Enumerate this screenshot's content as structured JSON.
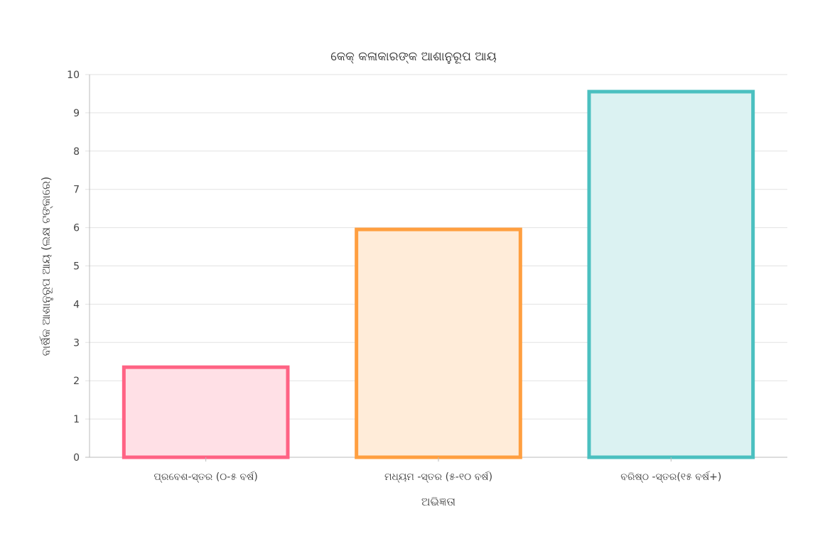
{
  "chart_data": {
    "type": "bar",
    "title": "କେକ୍ କଳାକାରଙ୍କ ଆଶାନୁରୂପ ଆୟ",
    "xlabel": "ଅଭିଜ୍ଞତା",
    "ylabel": "ବାର୍ଷିକ ଆଶାନୁରୂପ ଆୟ (ଲକ୍ଷ ଟଙ୍କାରେ)",
    "categories": [
      "ପ୍ରବେଶ-ସ୍ତର (୦-୫ ବର୍ଷ)",
      "ମଧ୍ୟମ -ସ୍ତର (୫-୧୦ ବର୍ଷ)",
      "ବରିଷ୍ଠ -ସ୍ତର(୧୫ ବର୍ଷ+)"
    ],
    "values": [
      2.4,
      6,
      9.6
    ],
    "ylim": [
      0,
      10
    ],
    "yticks": [
      0,
      1,
      2,
      3,
      4,
      5,
      6,
      7,
      8,
      9,
      10
    ],
    "grid": true,
    "colors": {
      "border": [
        "#ff6384",
        "#ff9f40",
        "#4bc0c0"
      ],
      "fill": [
        "#ffe0e6",
        "#ffecd9",
        "#dbf2f2"
      ]
    }
  }
}
